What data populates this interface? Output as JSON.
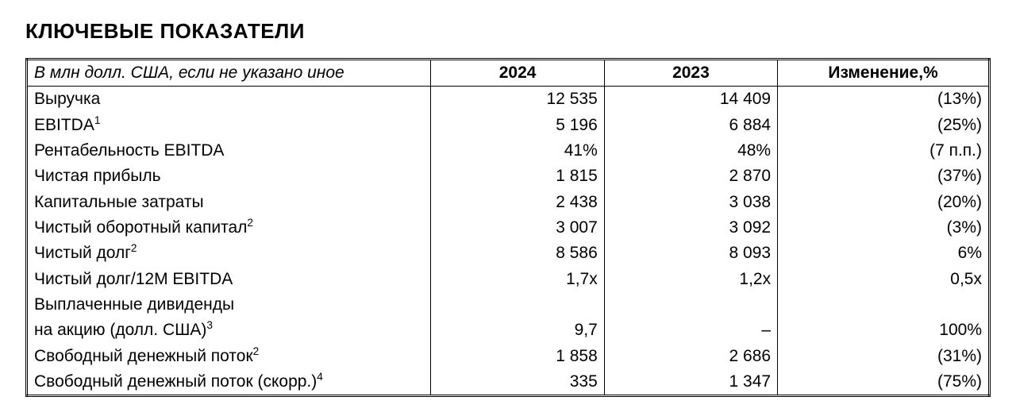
{
  "title": "КЛЮЧЕВЫЕ ПОКАЗАТЕЛИ",
  "table": {
    "type": "table",
    "header_note": "В млн долл. США, если не указано иное",
    "columns": {
      "year1": "2024",
      "year2": "2023",
      "change": "Изменение,%"
    },
    "col_align": [
      "left",
      "right",
      "right",
      "right"
    ],
    "border_color": "#000000",
    "background_color": "#ffffff",
    "font_size_pt": 16,
    "rows": [
      {
        "label": "Выручка",
        "sup": "",
        "y1": "12 535",
        "y2": "14 409",
        "chg": "(13%)"
      },
      {
        "label": "EBITDA",
        "sup": "1",
        "y1": "5 196",
        "y2": "6 884",
        "chg": "(25%)"
      },
      {
        "label": "Рентабельность EBITDA",
        "sup": "",
        "y1": "41%",
        "y2": "48%",
        "chg": "(7 п.п.)"
      },
      {
        "label": "Чистая прибыль",
        "sup": "",
        "y1": "1 815",
        "y2": "2 870",
        "chg": "(37%)"
      },
      {
        "label": "Капитальные затраты",
        "sup": "",
        "y1": "2 438",
        "y2": "3 038",
        "chg": "(20%)"
      },
      {
        "label": "Чистый оборотный капитал",
        "sup": "2",
        "y1": "3 007",
        "y2": "3 092",
        "chg": "(3%)"
      },
      {
        "label": "Чистый долг",
        "sup": "2",
        "y1": "8 586",
        "y2": "8 093",
        "chg": "6%"
      },
      {
        "label": "Чистый долг/12М EBITDA",
        "sup": "",
        "y1": "1,7x",
        "y2": "1,2x",
        "chg": "0,5x"
      },
      {
        "label": "Выплаченные дивиденды",
        "sup": "",
        "y1": "",
        "y2": "",
        "chg": ""
      },
      {
        "label": "на акцию (долл. США)",
        "sup": "3",
        "y1": "9,7",
        "y2": "–",
        "chg": "100%"
      },
      {
        "label": "Свободный денежный поток",
        "sup": "2",
        "y1": "1 858",
        "y2": "2 686",
        "chg": "(31%)"
      },
      {
        "label": "Свободный денежный поток (скорр.)",
        "sup": "4",
        "y1": "335",
        "y2": "1 347",
        "chg": "(75%)"
      }
    ]
  }
}
